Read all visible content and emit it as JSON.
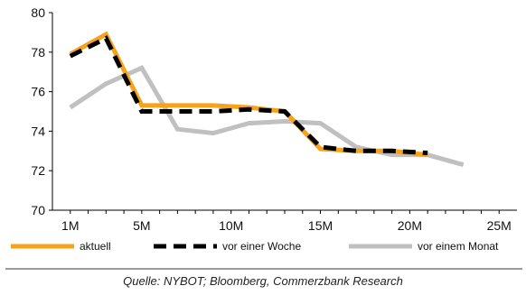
{
  "chart_data": {
    "type": "line",
    "x": [
      1,
      3,
      5,
      7,
      9,
      11,
      13,
      15,
      17,
      19,
      21,
      23,
      25
    ],
    "xticks": [
      1,
      5,
      10,
      15,
      20,
      25
    ],
    "xtick_labels": [
      "1M",
      "5M",
      "10M",
      "15M",
      "20M",
      "25M"
    ],
    "ylim": [
      70,
      80
    ],
    "yticks": [
      70,
      72,
      74,
      76,
      78,
      80
    ],
    "ytick_labels": [
      "70",
      "72",
      "74",
      "76",
      "78",
      "80"
    ],
    "grid": false,
    "legend_position": "bottom",
    "series": [
      {
        "name": "vor einem Monat",
        "color": "#c0c0c0",
        "style": "solid",
        "values": [
          75.2,
          76.4,
          77.2,
          74.1,
          73.9,
          74.4,
          74.5,
          74.4,
          73.2,
          72.8,
          72.8,
          72.3,
          null
        ]
      },
      {
        "name": "aktuell",
        "color": "#f7a21b",
        "style": "solid",
        "values": [
          77.9,
          78.9,
          75.3,
          75.3,
          75.3,
          75.2,
          75.0,
          73.1,
          73.0,
          73.0,
          72.8,
          null,
          null
        ]
      },
      {
        "name": "vor einer Woche",
        "color": "#000000",
        "style": "dashed",
        "values": [
          77.8,
          78.7,
          75.0,
          75.0,
          75.0,
          75.1,
          75.0,
          73.2,
          73.0,
          73.0,
          72.9,
          null,
          null
        ]
      }
    ],
    "source": "Quelle: NYBOT; Bloomberg, Commerzbank Research"
  }
}
